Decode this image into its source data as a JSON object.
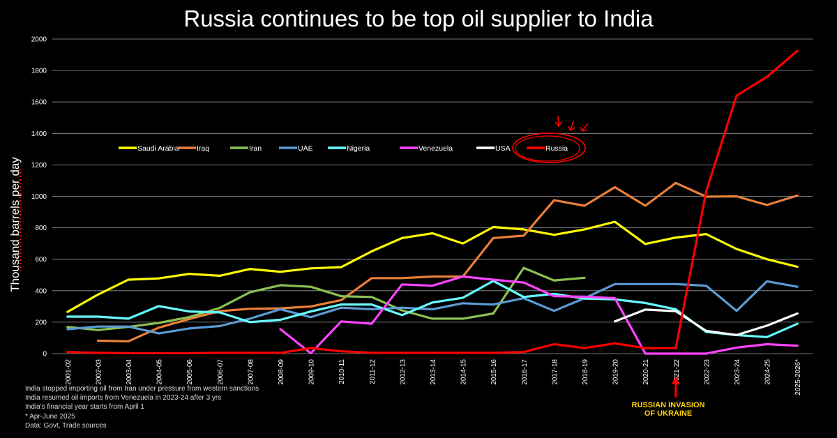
{
  "title": "Russia continues to be top oil supplier to India",
  "notes": [
    "India stopped importing oil from Iran under pressure from western sanctions",
    "India resumed oil imports from Venezuela in 2023-24 after 3 yrs",
    "India's financial year starts from April 1",
    "* Apr-June 2025",
    "Data: Govt, Trade sources"
  ],
  "annotation": {
    "line1": "RUSSIAN INVASION",
    "line2": "OF UKRAINE"
  },
  "chart_data": {
    "type": "line",
    "title": "Russia continues to be top oil supplier to India",
    "xlabel": "",
    "ylabel": "Thousand barrels per day",
    "ylim": [
      0,
      2000
    ],
    "yticks": [
      0,
      200,
      400,
      600,
      800,
      1000,
      1200,
      1400,
      1600,
      1800,
      2000
    ],
    "grid": true,
    "legend": "center-left",
    "categories": [
      "2001-02",
      "2002-03",
      "2003-04",
      "2004-05",
      "2005-06",
      "2006-07",
      "2007-08",
      "2008-09",
      "2009-10",
      "2010-11",
      "2011-12",
      "2012-13",
      "2013-14",
      "2014-15",
      "2015-16",
      "2016-17",
      "2017-18",
      "2018-19",
      "2019-20",
      "2020-21",
      "2021-22",
      "2022-23",
      "2023-24",
      "2024-25",
      "2025-2026*"
    ],
    "series": [
      {
        "name": "Saudi Arabia",
        "color": "#ffff00",
        "values": [
          265,
          375,
          470,
          478,
          507,
          495,
          538,
          520,
          542,
          550,
          650,
          735,
          765,
          700,
          805,
          790,
          755,
          790,
          838,
          697,
          738,
          760,
          665,
          600,
          552
        ]
      },
      {
        "name": "Iraq",
        "color": "#e8803a",
        "values": [
          null,
          82,
          78,
          165,
          220,
          270,
          285,
          288,
          300,
          340,
          480,
          480,
          490,
          490,
          735,
          750,
          975,
          940,
          1058,
          940,
          1085,
          998,
          1000,
          945,
          1005
        ]
      },
      {
        "name": "Iran",
        "color": "#8cc152",
        "values": [
          170,
          150,
          170,
          195,
          232,
          290,
          390,
          435,
          425,
          365,
          360,
          275,
          222,
          222,
          255,
          545,
          465,
          482,
          null,
          null,
          null,
          null,
          null,
          null,
          null
        ]
      },
      {
        "name": "UAE",
        "color": "#5b9bd5",
        "values": [
          155,
          172,
          172,
          128,
          160,
          175,
          222,
          282,
          232,
          292,
          282,
          292,
          282,
          320,
          312,
          352,
          272,
          352,
          442,
          442,
          442,
          432,
          272,
          460,
          425
        ]
      },
      {
        "name": "Nigeria",
        "color": "#66ffff",
        "values": [
          235,
          235,
          222,
          302,
          268,
          262,
          200,
          215,
          268,
          312,
          312,
          245,
          325,
          355,
          462,
          360,
          380,
          350,
          345,
          322,
          282,
          138,
          118,
          105,
          190
        ]
      },
      {
        "name": "Venezuela",
        "color": "#ff44ff",
        "values": [
          null,
          null,
          null,
          null,
          null,
          null,
          null,
          155,
          2,
          205,
          190,
          440,
          432,
          490,
          470,
          452,
          365,
          362,
          352,
          0,
          0,
          0,
          38,
          60,
          50
        ]
      },
      {
        "name": "USA",
        "color": "#ffffff",
        "values": [
          null,
          null,
          null,
          null,
          null,
          null,
          null,
          null,
          null,
          null,
          null,
          null,
          null,
          null,
          null,
          null,
          null,
          null,
          205,
          280,
          270,
          145,
          118,
          178,
          255
        ]
      },
      {
        "name": "Russia",
        "color": "#ff0000",
        "values": [
          10,
          5,
          3,
          3,
          3,
          5,
          5,
          5,
          35,
          15,
          5,
          5,
          5,
          5,
          5,
          10,
          60,
          35,
          65,
          35,
          35,
          1030,
          1640,
          1760,
          1925
        ]
      }
    ]
  }
}
